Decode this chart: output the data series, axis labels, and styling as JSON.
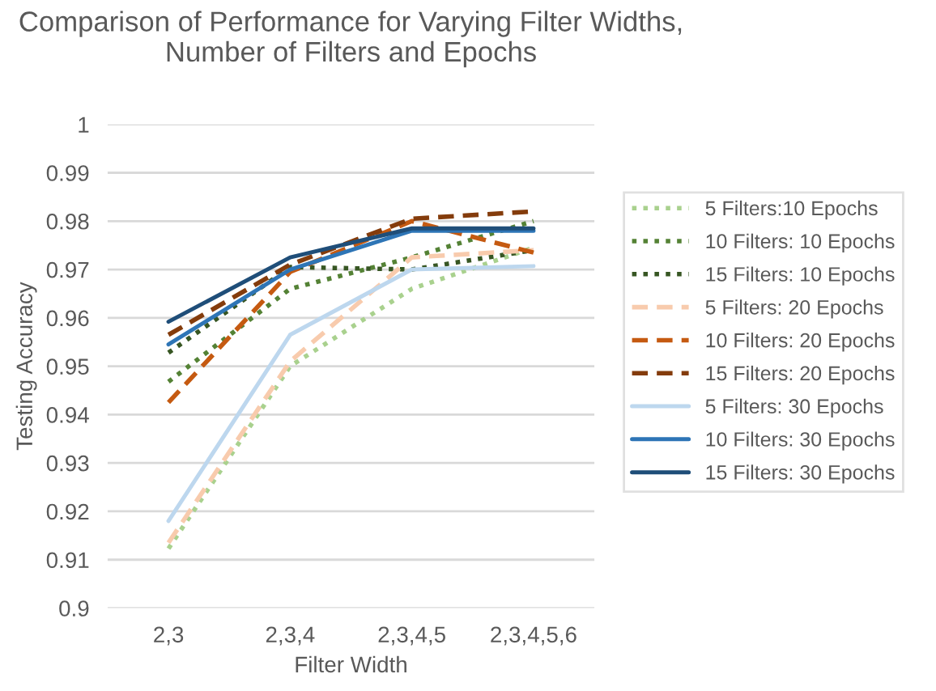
{
  "chart_data": {
    "type": "line",
    "title": "Comparison of Performance for Varying Filter Widths,\nNumber of Filters and Epochs",
    "xlabel": "Filter Width",
    "ylabel": "Testing Accuracy",
    "categories": [
      "2,3",
      "2,3,4",
      "2,3,4,5",
      "2,3,4,5,6"
    ],
    "ylim": [
      0.9,
      1
    ],
    "yticks": [
      {
        "value": 0.9,
        "label": "0.9"
      },
      0.91,
      0.92,
      0.93,
      0.94,
      0.95,
      0.96,
      0.97,
      0.98,
      0.99,
      {
        "value": 1,
        "label": "1"
      }
    ],
    "grid": "y",
    "legend": "right",
    "marker": "none",
    "series": [
      {
        "name": "5 Filters:10 Epochs",
        "color": "#a9d18e",
        "line_style": "dotted",
        "values": [
          0.9123,
          0.95,
          0.966,
          0.9745
        ]
      },
      {
        "name": "10 Filters: 10 Epochs",
        "color": "#548235",
        "line_style": "dotted",
        "values": [
          0.9468,
          0.966,
          0.9725,
          0.98
        ]
      },
      {
        "name": "15 Filters: 10 Epochs",
        "color": "#375623",
        "line_style": "dotted",
        "values": [
          0.9528,
          0.9705,
          0.97,
          0.974
        ]
      },
      {
        "name": "5 Filters: 20 Epochs",
        "color": "#f8cbad",
        "line_style": "dashed",
        "values": [
          0.9135,
          0.951,
          0.9725,
          0.974
        ]
      },
      {
        "name": "10 Filters: 20 Epochs",
        "color": "#c55a11",
        "line_style": "dashed",
        "values": [
          0.9425,
          0.9695,
          0.98,
          0.9735
        ]
      },
      {
        "name": "15 Filters: 20 Epochs",
        "color": "#843c0c",
        "line_style": "dashed",
        "values": [
          0.9565,
          0.971,
          0.9805,
          0.982
        ]
      },
      {
        "name": "5 Filters: 30 Epochs",
        "color": "#bdd7ee",
        "line_style": "solid",
        "values": [
          0.918,
          0.9565,
          0.97,
          0.9707
        ]
      },
      {
        "name": "10 Filters: 30 Epochs",
        "color": "#2e75b6",
        "line_style": "solid",
        "values": [
          0.9545,
          0.97,
          0.978,
          0.978
        ]
      },
      {
        "name": "15 Filters: 30 Epochs",
        "color": "#1f4e79",
        "line_style": "solid",
        "values": [
          0.9592,
          0.9725,
          0.9785,
          0.9785
        ]
      }
    ]
  }
}
